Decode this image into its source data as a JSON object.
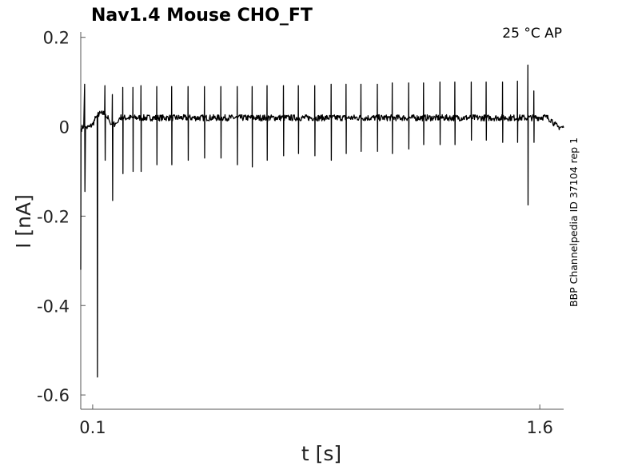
{
  "chart_data": {
    "type": "line",
    "title": "Nav1.4  Mouse  CHO_FT",
    "annotation": "25 °C  AP",
    "side_label": "BBP Channelpedia ID 37104 rep 1",
    "xlabel": "t [s]",
    "ylabel": "I [nA]",
    "xlim": [
      0.06,
      1.68
    ],
    "ylim": [
      -0.632,
      0.212
    ],
    "x_ticks": [
      {
        "value": 0.1,
        "label": "0.1"
      },
      {
        "value": 1.6,
        "label": "1.6"
      }
    ],
    "y_ticks": [
      {
        "value": 0.2,
        "label": "0.2"
      },
      {
        "value": 0,
        "label": "0"
      },
      {
        "value": -0.2,
        "label": "-0.2"
      },
      {
        "value": -0.4,
        "label": "-0.4"
      },
      {
        "value": -0.6,
        "label": "-0.6"
      }
    ],
    "grid": false,
    "color": "#000000",
    "series": [
      {
        "points": [
          [
            0.06,
            -0.32
          ],
          [
            0.061,
            -0.005
          ],
          [
            0.07,
            0.002
          ],
          [
            0.073,
            0.095
          ],
          [
            0.074,
            -0.145
          ],
          [
            0.076,
            -0.003
          ],
          [
            0.09,
            0.0
          ],
          [
            0.1,
            0.005
          ],
          [
            0.11,
            0.02
          ],
          [
            0.115,
            0.025
          ],
          [
            0.116,
            -0.56
          ],
          [
            0.117,
            0.028
          ],
          [
            0.14,
            0.03
          ],
          [
            0.141,
            0.092
          ],
          [
            0.142,
            -0.075
          ],
          [
            0.143,
            0.028
          ],
          [
            0.155,
            0.015
          ],
          [
            0.16,
            0.005
          ],
          [
            0.165,
            0.006
          ],
          [
            0.166,
            0.072
          ],
          [
            0.167,
            -0.165
          ],
          [
            0.168,
            0.005
          ],
          [
            0.18,
            0.008
          ],
          [
            0.185,
            0.01
          ],
          [
            0.19,
            0.02
          ],
          [
            0.2,
            0.022
          ],
          [
            1.62,
            0.022
          ],
          [
            1.64,
            0.015
          ],
          [
            1.65,
            0.005
          ],
          [
            1.66,
            0.0
          ],
          [
            1.68,
            -0.002
          ]
        ],
        "spikes": [
          {
            "t": 0.201,
            "max": 0.088,
            "min": -0.105
          },
          {
            "t": 0.235,
            "max": 0.088,
            "min": -0.1
          },
          {
            "t": 0.262,
            "max": 0.092,
            "min": -0.1
          },
          {
            "t": 0.315,
            "max": 0.09,
            "min": -0.085
          },
          {
            "t": 0.365,
            "max": 0.09,
            "min": -0.085
          },
          {
            "t": 0.42,
            "max": 0.09,
            "min": -0.075
          },
          {
            "t": 0.475,
            "max": 0.09,
            "min": -0.07
          },
          {
            "t": 0.53,
            "max": 0.09,
            "min": -0.07
          },
          {
            "t": 0.585,
            "max": 0.09,
            "min": -0.085
          },
          {
            "t": 0.635,
            "max": 0.09,
            "min": -0.09
          },
          {
            "t": 0.685,
            "max": 0.092,
            "min": -0.075
          },
          {
            "t": 0.74,
            "max": 0.092,
            "min": -0.065
          },
          {
            "t": 0.79,
            "max": 0.092,
            "min": -0.06
          },
          {
            "t": 0.845,
            "max": 0.092,
            "min": -0.065
          },
          {
            "t": 0.9,
            "max": 0.095,
            "min": -0.075
          },
          {
            "t": 0.95,
            "max": 0.095,
            "min": -0.06
          },
          {
            "t": 1.0,
            "max": 0.095,
            "min": -0.055
          },
          {
            "t": 1.055,
            "max": 0.095,
            "min": -0.055
          },
          {
            "t": 1.105,
            "max": 0.098,
            "min": -0.06
          },
          {
            "t": 1.16,
            "max": 0.098,
            "min": -0.05
          },
          {
            "t": 1.21,
            "max": 0.098,
            "min": -0.04
          },
          {
            "t": 1.265,
            "max": 0.1,
            "min": -0.04
          },
          {
            "t": 1.315,
            "max": 0.1,
            "min": -0.04
          },
          {
            "t": 1.37,
            "max": 0.1,
            "min": -0.03
          },
          {
            "t": 1.42,
            "max": 0.1,
            "min": -0.03
          },
          {
            "t": 1.475,
            "max": 0.1,
            "min": -0.035
          },
          {
            "t": 1.525,
            "max": 0.102,
            "min": -0.035
          },
          {
            "t": 1.56,
            "max": 0.138,
            "min": -0.175
          },
          {
            "t": 1.58,
            "max": 0.08,
            "min": -0.035
          }
        ]
      }
    ]
  }
}
